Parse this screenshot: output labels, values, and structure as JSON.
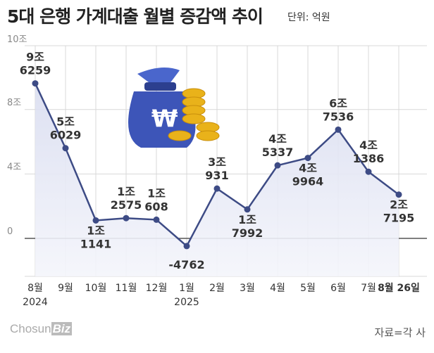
{
  "logo": {
    "part1": "Chosun",
    "part2": "Biz"
  },
  "chart_data": {
    "type": "area",
    "title": "5대 은행 가계대출 월별 증감액 추이",
    "unit": "단위: 억원",
    "source": "자료=각 사",
    "xlabel": "",
    "ylabel": "",
    "categories": [
      "8월",
      "9월",
      "10월",
      "11월",
      "12월",
      "1월",
      "2월",
      "3월",
      "4월",
      "5월",
      "6월",
      "7월",
      "8월 26일"
    ],
    "year_labels": {
      "0": "2024",
      "5": "2025"
    },
    "values": [
      96259,
      56029,
      11141,
      12575,
      11608,
      -4762,
      30931,
      17992,
      45337,
      49964,
      67536,
      41386,
      27195
    ],
    "data_labels": [
      [
        "9조",
        "6259"
      ],
      [
        "5조",
        "6029"
      ],
      [
        "1조",
        "1141"
      ],
      [
        "1조",
        "2575"
      ],
      [
        "1조",
        "608"
      ],
      [
        "",
        "-4762"
      ],
      [
        "3조",
        "931"
      ],
      [
        "1조",
        "7992"
      ],
      [
        "4조",
        "5337"
      ],
      [
        "4조",
        "9964"
      ],
      [
        "6조",
        "7536"
      ],
      [
        "4조",
        "1386"
      ],
      [
        "2조",
        "7195"
      ]
    ],
    "label_position": [
      "above",
      "above",
      "below",
      "above",
      "above",
      "below",
      "above",
      "below",
      "above",
      "below",
      "above",
      "above",
      "below"
    ],
    "yticks": [
      {
        "value": 0,
        "label": "0"
      },
      {
        "value": 40000,
        "label": "4조"
      },
      {
        "value": 80000,
        "label": "8조"
      }
    ],
    "top_label": "10조",
    "ylim": [
      -23000,
      120000
    ],
    "grid": true,
    "colors": {
      "line": "#3d4b85",
      "fill": "#e4e7f4",
      "grid": "#d8d8d8"
    }
  }
}
